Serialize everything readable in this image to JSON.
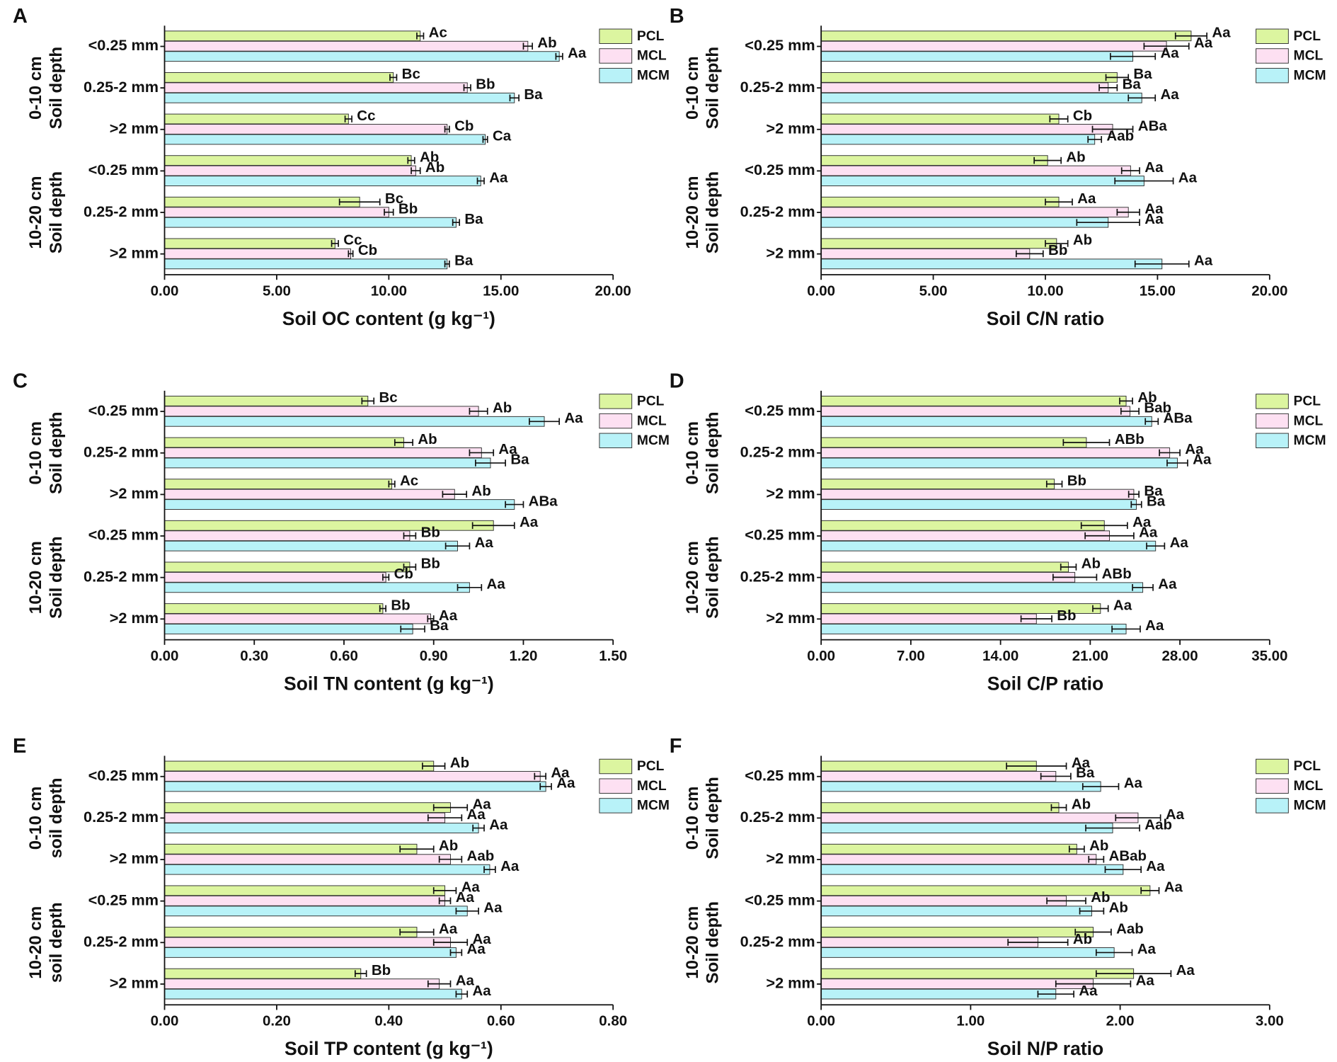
{
  "chart_data": [
    {
      "type": "bar",
      "orientation": "horizontal",
      "panel": "A",
      "xlabel": "Soil OC content (g kg⁻¹)",
      "categories": [
        "<0.25 mm",
        "0.25-2 mm",
        ">2 mm",
        "<0.25 mm",
        "0.25-2 mm",
        ">2 mm"
      ],
      "groups": [
        {
          "label": "0-10 cm",
          "sublabel": "Soil depth"
        },
        {
          "label": "10-20 cm",
          "sublabel": "Soil depth"
        }
      ],
      "xlim": [
        0,
        20
      ],
      "xticks": [
        {
          "value": 0,
          "label": "0.00"
        },
        {
          "value": 5,
          "label": "5.00"
        },
        {
          "value": 10,
          "label": "10.00"
        },
        {
          "value": 15,
          "label": "15.00"
        },
        {
          "value": 20,
          "label": "20.00"
        }
      ],
      "series": [
        {
          "name": "PCL",
          "color": "#dcf5a0",
          "values": [
            11.4,
            10.2,
            8.2,
            11.0,
            8.7,
            7.6
          ],
          "errors": [
            0.15,
            0.15,
            0.15,
            0.15,
            0.9,
            0.15
          ],
          "letters": [
            "Ac",
            "Bc",
            "Cc",
            "Ab",
            "Bc",
            "Cc"
          ]
        },
        {
          "name": "MCL",
          "color": "#fde0f2",
          "values": [
            16.2,
            13.5,
            12.6,
            11.2,
            10.0,
            8.3
          ],
          "errors": [
            0.2,
            0.15,
            0.1,
            0.2,
            0.2,
            0.1
          ],
          "letters": [
            "Ab",
            "Bb",
            "Cb",
            "Ab",
            "Bb",
            "Cb"
          ]
        },
        {
          "name": "MCM",
          "color": "#b8f2f8",
          "values": [
            17.6,
            15.6,
            14.3,
            14.1,
            13.0,
            12.6
          ],
          "errors": [
            0.15,
            0.2,
            0.1,
            0.15,
            0.15,
            0.1
          ],
          "letters": [
            "Aa",
            "Ba",
            "Ca",
            "Aa",
            "Ba",
            "Ba"
          ]
        }
      ]
    },
    {
      "type": "bar",
      "orientation": "horizontal",
      "panel": "B",
      "xlabel": "Soil C/N ratio",
      "categories": [
        "<0.25 mm",
        "0.25-2 mm",
        ">2 mm",
        "<0.25 mm",
        "0.25-2 mm",
        ">2 mm"
      ],
      "groups": [
        {
          "label": "0-10 cm",
          "sublabel": "Soil depth"
        },
        {
          "label": "10-20 cm",
          "sublabel": "Soil depth"
        }
      ],
      "xlim": [
        0,
        20
      ],
      "xticks": [
        {
          "value": 0,
          "label": "0.00"
        },
        {
          "value": 5,
          "label": "5.00"
        },
        {
          "value": 10,
          "label": "10.00"
        },
        {
          "value": 15,
          "label": "15.00"
        },
        {
          "value": 20,
          "label": "20.00"
        }
      ],
      "series": [
        {
          "name": "PCL",
          "color": "#dcf5a0",
          "values": [
            16.5,
            13.2,
            10.6,
            10.1,
            10.6,
            10.5
          ],
          "errors": [
            0.7,
            0.5,
            0.4,
            0.6,
            0.6,
            0.5
          ],
          "letters": [
            "Aa",
            "Ba",
            "Cb",
            "Ab",
            "Aa",
            "Ab"
          ]
        },
        {
          "name": "MCL",
          "color": "#fde0f2",
          "values": [
            15.4,
            12.8,
            13.0,
            13.8,
            13.7,
            9.3
          ],
          "errors": [
            1.0,
            0.4,
            0.9,
            0.4,
            0.5,
            0.6
          ],
          "letters": [
            "Aa",
            "Ba",
            "ABa",
            "Aa",
            "Aa",
            "Bb"
          ]
        },
        {
          "name": "MCM",
          "color": "#b8f2f8",
          "values": [
            13.9,
            14.3,
            12.2,
            14.4,
            12.8,
            15.2
          ],
          "errors": [
            1.0,
            0.6,
            0.3,
            1.3,
            1.4,
            1.2
          ],
          "letters": [
            "Aa",
            "Aa",
            "Aab",
            "Aa",
            "Aa",
            "Aa"
          ]
        }
      ]
    },
    {
      "type": "bar",
      "orientation": "horizontal",
      "panel": "C",
      "xlabel": "Soil TN content (g kg⁻¹)",
      "categories": [
        "<0.25 mm",
        "0.25-2 mm",
        ">2 mm",
        "<0.25 mm",
        "0.25-2 mm",
        ">2 mm"
      ],
      "groups": [
        {
          "label": "0-10 cm",
          "sublabel": "Soil depth"
        },
        {
          "label": "10-20 cm",
          "sublabel": "Soil depth"
        }
      ],
      "xlim": [
        0,
        1.5
      ],
      "xticks": [
        {
          "value": 0,
          "label": "0.00"
        },
        {
          "value": 0.3,
          "label": "0.30"
        },
        {
          "value": 0.6,
          "label": "0.60"
        },
        {
          "value": 0.9,
          "label": "0.90"
        },
        {
          "value": 1.2,
          "label": "1.20"
        },
        {
          "value": 1.5,
          "label": "1.50"
        }
      ],
      "series": [
        {
          "name": "PCL",
          "color": "#dcf5a0",
          "values": [
            0.68,
            0.8,
            0.76,
            1.1,
            0.82,
            0.73
          ],
          "errors": [
            0.02,
            0.03,
            0.01,
            0.07,
            0.02,
            0.01
          ],
          "letters": [
            "Bc",
            "Ab",
            "Ac",
            "Aa",
            "Bb",
            "Bb"
          ]
        },
        {
          "name": "MCL",
          "color": "#fde0f2",
          "values": [
            1.05,
            1.06,
            0.97,
            0.82,
            0.74,
            0.89
          ],
          "errors": [
            0.03,
            0.04,
            0.04,
            0.02,
            0.01,
            0.01
          ],
          "letters": [
            "Ab",
            "Aa",
            "Ab",
            "Bb",
            "Cb",
            "Aa"
          ]
        },
        {
          "name": "MCM",
          "color": "#b8f2f8",
          "values": [
            1.27,
            1.09,
            1.17,
            0.98,
            1.02,
            0.83
          ],
          "errors": [
            0.05,
            0.05,
            0.03,
            0.04,
            0.04,
            0.04
          ],
          "letters": [
            "Aa",
            "Ba",
            "ABa",
            "Aa",
            "Aa",
            "Ba"
          ]
        }
      ]
    },
    {
      "type": "bar",
      "orientation": "horizontal",
      "panel": "D",
      "xlabel": "Soil C/P ratio",
      "categories": [
        "<0.25 mm",
        "0.25-2 mm",
        ">2 mm",
        "<0.25 mm",
        "0.25-2 mm",
        ">2 mm"
      ],
      "groups": [
        {
          "label": "0-10 cm",
          "sublabel": "Soil depth"
        },
        {
          "label": "10-20 cm",
          "sublabel": "Soil depth"
        }
      ],
      "xlim": [
        0,
        35
      ],
      "xticks": [
        {
          "value": 0,
          "label": "0.00"
        },
        {
          "value": 7,
          "label": "7.00"
        },
        {
          "value": 14,
          "label": "14.00"
        },
        {
          "value": 21,
          "label": "21.00"
        },
        {
          "value": 28,
          "label": "28.00"
        },
        {
          "value": 35,
          "label": "35.00"
        }
      ],
      "series": [
        {
          "name": "PCL",
          "color": "#dcf5a0",
          "values": [
            23.8,
            20.7,
            18.2,
            22.1,
            19.3,
            21.8
          ],
          "errors": [
            0.5,
            1.8,
            0.6,
            1.8,
            0.6,
            0.6
          ],
          "letters": [
            "Ab",
            "ABb",
            "Bb",
            "Aa",
            "Ab",
            "Aa"
          ]
        },
        {
          "name": "MCL",
          "color": "#fde0f2",
          "values": [
            24.1,
            27.2,
            24.4,
            22.5,
            19.8,
            16.8
          ],
          "errors": [
            0.7,
            0.8,
            0.4,
            1.9,
            1.7,
            1.2
          ],
          "letters": [
            "Bab",
            "Aa",
            "Ba",
            "Aa",
            "ABb",
            "Bb"
          ]
        },
        {
          "name": "MCM",
          "color": "#b8f2f8",
          "values": [
            25.8,
            27.8,
            24.6,
            26.1,
            25.1,
            23.8
          ],
          "errors": [
            0.5,
            0.8,
            0.4,
            0.7,
            0.8,
            1.1
          ],
          "letters": [
            "ABa",
            "Aa",
            "Ba",
            "Aa",
            "Aa",
            "Aa"
          ]
        }
      ]
    },
    {
      "type": "bar",
      "orientation": "horizontal",
      "panel": "E",
      "xlabel": "Soil TP content (g kg⁻¹)",
      "categories": [
        "<0.25 mm",
        "0.25-2 mm",
        ">2 mm",
        "<0.25 mm",
        "0.25-2 mm",
        ">2 mm"
      ],
      "groups": [
        {
          "label": "0-10 cm",
          "sublabel": "soil depth"
        },
        {
          "label": "10-20 cm",
          "sublabel": "soil depth"
        }
      ],
      "xlim": [
        0,
        0.8
      ],
      "xticks": [
        {
          "value": 0,
          "label": "0.00"
        },
        {
          "value": 0.2,
          "label": "0.20"
        },
        {
          "value": 0.4,
          "label": "0.40"
        },
        {
          "value": 0.6,
          "label": "0.60"
        },
        {
          "value": 0.8,
          "label": "0.80"
        }
      ],
      "series": [
        {
          "name": "PCL",
          "color": "#dcf5a0",
          "values": [
            0.48,
            0.51,
            0.45,
            0.5,
            0.45,
            0.35
          ],
          "errors": [
            0.02,
            0.03,
            0.03,
            0.02,
            0.03,
            0.01
          ],
          "letters": [
            "Ab",
            "Aa",
            "Ab",
            "Aa",
            "Aa",
            "Bb"
          ]
        },
        {
          "name": "MCL",
          "color": "#fde0f2",
          "values": [
            0.67,
            0.5,
            0.51,
            0.5,
            0.51,
            0.49
          ],
          "errors": [
            0.01,
            0.03,
            0.02,
            0.01,
            0.03,
            0.02
          ],
          "letters": [
            "Aa",
            "Aa",
            "Aab",
            "Aa",
            "Aa",
            "Aa"
          ]
        },
        {
          "name": "MCM",
          "color": "#b8f2f8",
          "values": [
            0.68,
            0.56,
            0.58,
            0.54,
            0.52,
            0.53
          ],
          "errors": [
            0.01,
            0.01,
            0.01,
            0.02,
            0.01,
            0.01
          ],
          "letters": [
            "Aa",
            "Aa",
            "Aa",
            "Aa",
            "Aa",
            "Aa"
          ]
        }
      ]
    },
    {
      "type": "bar",
      "orientation": "horizontal",
      "panel": "F",
      "xlabel": "Soil N/P ratio",
      "categories": [
        "<0.25 mm",
        "0.25-2 mm",
        ">2 mm",
        "<0.25 mm",
        "0.25-2 mm",
        ">2 mm"
      ],
      "groups": [
        {
          "label": "0-10 cm",
          "sublabel": "Soil depth"
        },
        {
          "label": "10-20 cm",
          "sublabel": "Soil depth"
        }
      ],
      "xlim": [
        0,
        3
      ],
      "xticks": [
        {
          "value": 0,
          "label": "0.00"
        },
        {
          "value": 1,
          "label": "1.00"
        },
        {
          "value": 2,
          "label": "2.00"
        },
        {
          "value": 3,
          "label": "3.00"
        }
      ],
      "series": [
        {
          "name": "PCL",
          "color": "#dcf5a0",
          "values": [
            1.44,
            1.59,
            1.71,
            2.2,
            1.82,
            2.09
          ],
          "errors": [
            0.2,
            0.05,
            0.05,
            0.06,
            0.12,
            0.25
          ],
          "letters": [
            "Aa",
            "Ab",
            "Ab",
            "Aa",
            "Aab",
            "Aa"
          ]
        },
        {
          "name": "MCL",
          "color": "#fde0f2",
          "values": [
            1.57,
            2.12,
            1.84,
            1.64,
            1.45,
            1.82
          ],
          "errors": [
            0.1,
            0.15,
            0.05,
            0.13,
            0.2,
            0.25
          ],
          "letters": [
            "Ba",
            "Aa",
            "ABab",
            "Ab",
            "Ab",
            "Aa"
          ]
        },
        {
          "name": "MCM",
          "color": "#b8f2f8",
          "values": [
            1.87,
            1.95,
            2.02,
            1.81,
            1.96,
            1.57
          ],
          "errors": [
            0.12,
            0.18,
            0.12,
            0.08,
            0.12,
            0.12
          ],
          "letters": [
            "Aa",
            "Aab",
            "Aa",
            "Ab",
            "Aa",
            "Aa"
          ]
        }
      ]
    }
  ]
}
